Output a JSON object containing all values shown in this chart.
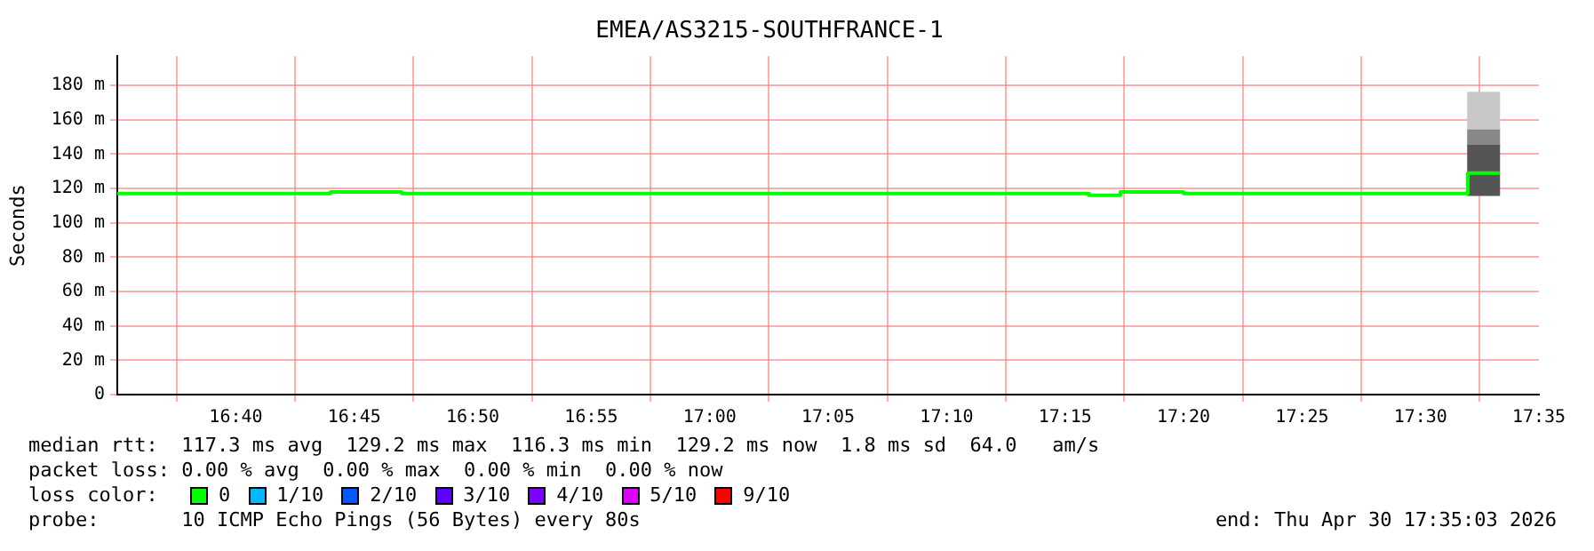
{
  "chart_data": {
    "type": "step",
    "title": "EMEA/AS3215-SOUTHFRANCE-1",
    "ylabel": "Seconds",
    "xlim": [
      16.5833,
      17.5833
    ],
    "xticks": [
      {
        "value": 16.6667,
        "label": "16:40"
      },
      {
        "value": 16.75,
        "label": "16:45"
      },
      {
        "value": 16.8333,
        "label": "16:50"
      },
      {
        "value": 16.9167,
        "label": "16:55"
      },
      {
        "value": 17,
        "label": "17:00"
      },
      {
        "value": 17.0833,
        "label": "17:05"
      },
      {
        "value": 17.1667,
        "label": "17:10"
      },
      {
        "value": 17.25,
        "label": "17:15"
      },
      {
        "value": 17.3333,
        "label": "17:20"
      },
      {
        "value": 17.4167,
        "label": "17:25"
      },
      {
        "value": 17.5,
        "label": "17:30"
      },
      {
        "value": 17.5833,
        "label": "17:35"
      }
    ],
    "ylim": [
      0,
      197
    ],
    "yticks": [
      {
        "value": 0,
        "label": "0"
      },
      {
        "value": 20,
        "label": "20 m"
      },
      {
        "value": 40,
        "label": "40 m"
      },
      {
        "value": 60,
        "label": "60 m"
      },
      {
        "value": 80,
        "label": "80 m"
      },
      {
        "value": 100,
        "label": "100 m"
      },
      {
        "value": 120,
        "label": "120 m"
      },
      {
        "value": 140,
        "label": "140 m"
      },
      {
        "value": 160,
        "label": "160 m"
      },
      {
        "value": 180,
        "label": "180 m"
      }
    ],
    "grid": true,
    "legend": false,
    "series": [
      {
        "type": "bar",
        "color": "#555555",
        "x": [
          17.5444
        ],
        "base": [
          116
        ],
        "values": [
          29
        ]
      },
      {
        "type": "bar",
        "color": "#888888",
        "x": [
          17.5444
        ],
        "base": [
          145
        ],
        "values": [
          9
        ]
      },
      {
        "type": "bar",
        "color": "#c8c8c8",
        "x": [
          17.5444
        ],
        "base": [
          154
        ],
        "values": [
          22
        ]
      },
      {
        "color": "#00ff00",
        "x": [
          16.5833,
          16.7333,
          16.7833,
          17.2667,
          17.2889,
          17.3333,
          17.5333,
          17.5556
        ],
        "values": [
          117,
          118,
          117,
          116,
          118,
          117,
          129,
          129
        ]
      }
    ],
    "annotations": [
      "median rtt:  117.3 ms avg  129.2 ms max  116.3 ms min  129.2 ms now  1.8 ms sd  64.0   am/s",
      "packet loss: 0.00 % avg  0.00 % max  0.00 % min  0.00 % now",
      "loss color:",
      "0",
      "1/10",
      "2/10",
      "3/10",
      "4/10",
      "5/10",
      "9/10",
      "probe:       10 ICMP Echo Pings (56 Bytes) every 80s",
      "end: Thu Apr 30 17:35:03 2026"
    ]
  }
}
